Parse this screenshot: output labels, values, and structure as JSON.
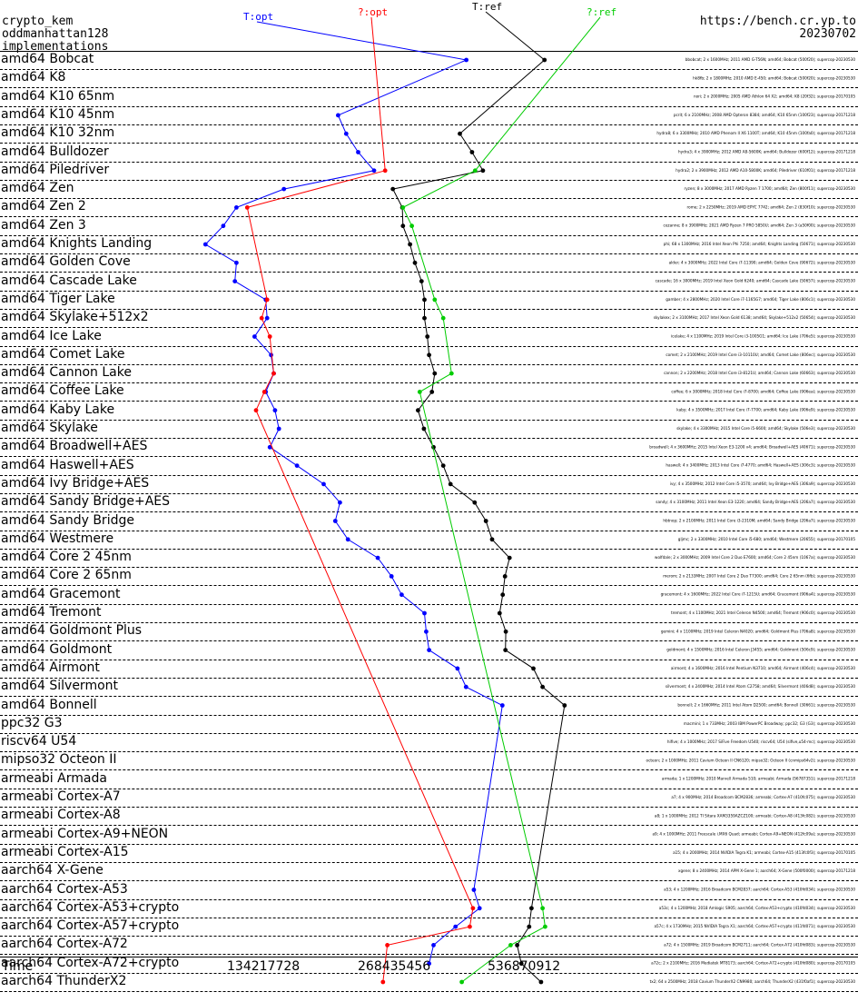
{
  "header": {
    "line1": "crypto_kem",
    "line2": "oddmanhattan128",
    "line3": "implementations",
    "url": "https://bench.cr.yp.to",
    "date": "20230702"
  },
  "series_labels": {
    "t_opt": "T:opt",
    "q_opt": "?:opt",
    "t_ref": "T:ref",
    "q_ref": "?:ref"
  },
  "colors": {
    "t_opt": "#0000ff",
    "q_opt": "#ff0000",
    "t_ref": "#000000",
    "q_ref": "#00cc00"
  },
  "rows": [
    "amd64 Bobcat",
    "amd64 K8",
    "amd64 K10 65nm",
    "amd64 K10 45nm",
    "amd64 K10 32nm",
    "amd64 Bulldozer",
    "amd64 Piledriver",
    "amd64 Zen",
    "amd64 Zen 2",
    "amd64 Zen 3",
    "amd64 Knights Landing",
    "amd64 Golden Cove",
    "amd64 Cascade Lake",
    "amd64 Tiger Lake",
    "amd64 Skylake+512x2",
    "amd64 Ice Lake",
    "amd64 Comet Lake",
    "amd64 Cannon Lake",
    "amd64 Coffee Lake",
    "amd64 Kaby Lake",
    "amd64 Skylake",
    "amd64 Broadwell+AES",
    "amd64 Haswell+AES",
    "amd64 Ivy Bridge+AES",
    "amd64 Sandy Bridge+AES",
    "amd64 Sandy Bridge",
    "amd64 Westmere",
    "amd64 Core 2 45nm",
    "amd64 Core 2 65nm",
    "amd64 Gracemont",
    "amd64 Tremont",
    "amd64 Goldmont Plus",
    "amd64 Goldmont",
    "amd64 Airmont",
    "amd64 Silvermont",
    "amd64 Bonnell",
    "ppc32 G3",
    "riscv64 U54",
    "mipso32 Octeon II",
    "armeabi Armada",
    "armeabi Cortex-A7",
    "armeabi Cortex-A8",
    "armeabi Cortex-A9+NEON",
    "armeabi Cortex-A15",
    "aarch64 X-Gene",
    "aarch64 Cortex-A53",
    "aarch64 Cortex-A53+crypto",
    "aarch64 Cortex-A57+crypto",
    "aarch64 Cortex-A72",
    "aarch64 Cortex-A72+crypto",
    "aarch64 ThunderX2"
  ],
  "x_axis": {
    "label": "Time",
    "ticks": [
      "134217728",
      "268435456",
      "536870912"
    ]
  },
  "machine_notes": [
    {
      "row": 0,
      "text": "bbobcat; 2 x 1600MHz; 2011 AMD G-T56N; amd64; Bobcat (500f20); supercop-20230530"
    },
    {
      "row": 1,
      "text": "hk8fb; 2 x 1800MHz; 2010 AMD E-450; amd64; Bobcat (500f20); supercop-20230530"
    },
    {
      "row": 2,
      "text": "nori; 2 x 2000MHz; 2005 AMD Athlon 64 X2; amd64; K8 (20f32); supercop-20170105"
    },
    {
      "row": 3,
      "text": "pcrit; 6 x 2100MHz; 2008 AMD Opteron 8384; amd64; K10 65nm (100f23); supercop-20171218"
    },
    {
      "row": 4,
      "text": "hydra8; 6 x 3300MHz; 2010 AMD Phenom II X6 1100T; amd64; K10 45nm (100fa0); supercop-20171218"
    },
    {
      "row": 5,
      "text": "hydra3; 4 x 3900MHz; 2012 AMD A8-5600K; amd64; Bulldozer (600f12); supercop-20171218"
    },
    {
      "row": 6,
      "text": "hydra2; 2 x 3900MHz; 2012 AMD A10-5800K; amd64; Piledriver (610f01); supercop-20171218"
    },
    {
      "row": 7,
      "text": "ryzen; 8 x 3000MHz; 2017 AMD Ryzen 7 1700; amd64; Zen (800f11); supercop-20230530"
    },
    {
      "row": 8,
      "text": "rome; 2 x 2250MHz; 2019 AMD EPYC 7742; amd64; Zen 2 (830f10); supercop-20230530"
    },
    {
      "row": 9,
      "text": "cezanne; 8 x 3900MHz; 2021 AMD Ryzen 7 PRO 5850U; amd64; Zen 3 (a50f00); supercop-20230530"
    },
    {
      "row": 10,
      "text": "phi; 68 x 1300MHz; 2016 Intel Xeon Phi 7250; amd64; Knights Landing (50671); supercop-20230530"
    },
    {
      "row": 11,
      "text": "alder; 4 x 3000MHz; 2022 Intel Core i7-11390; amd64; Golden Cove (90672); supercop-20230530"
    },
    {
      "row": 12,
      "text": "cascade; 16 x 3000MHz; 2019 Intel Xeon Gold 6240; amd64; Cascade Lake (50657); supercop-20230530"
    },
    {
      "row": 13,
      "text": "gamber; 4 x 2800MHz; 2020 Intel Core i7-1165G7; amd64; Tiger Lake (806c1); supercop-20230530"
    },
    {
      "row": 14,
      "text": "skylakex; 2 x 3100MHz; 2017 Intel Xeon Gold 6138; amd64; Skylake+512x2 (50654); supercop-20230530"
    },
    {
      "row": 15,
      "text": "icelake; 4 x 1100MHz; 2019 Intel Core i3-1005G1; amd64; Ice Lake (706e5); supercop-20230530"
    },
    {
      "row": 16,
      "text": "comet; 2 x 2100MHz; 2019 Intel Core i3-10110U; amd64; Comet Lake (806ec); supercop-20230530"
    },
    {
      "row": 17,
      "text": "cannon; 2 x 2200MHz; 2018 Intel Core i3-8121U; amd64; Cannon Lake (60663); supercop-20230530"
    },
    {
      "row": 18,
      "text": "coffee; 6 x 3000MHz; 2018 Intel Core i7-8700; amd64; Coffee Lake (906ea); supercop-20230530"
    },
    {
      "row": 19,
      "text": "kaby; 4 x 3500MHz; 2017 Intel Core i7-7700; amd64; Kaby Lake (906e9); supercop-20230530"
    },
    {
      "row": 20,
      "text": "skylake; 4 x 3300MHz; 2015 Intel Core i5-6600; amd64; Skylake (506e3); supercop-20230530"
    },
    {
      "row": 21,
      "text": "broadwell; 4 x 3600MHz; 2015 Intel Xeon E3-1200 v4; amd64; Broadwell+AES (40671); supercop-20230530"
    },
    {
      "row": 22,
      "text": "haswell; 4 x 3400MHz; 2013 Intel Core i7-4770; amd64; Haswell+AES (306c3); supercop-20230530"
    },
    {
      "row": 23,
      "text": "ivy; 4 x 3500MHz; 2012 Intel Core i5-3570; amd64; Ivy Bridge+AES (306a9); supercop-20230530"
    },
    {
      "row": 24,
      "text": "sandy; 4 x 3100MHz; 2011 Intel Xeon E3-1220; amd64; Sandy Bridge+AES (206a7); supercop-20230530"
    },
    {
      "row": 25,
      "text": "hbtnop; 2 x 2100MHz; 2011 Intel Core i3-2310M; amd64; Sandy Bridge (206a7); supercop-20230530"
    },
    {
      "row": 26,
      "text": "gljmc; 2 x 3300MHz; 2010 Intel Core i5-680; amd64; Westmere (20655); supercop-20170105"
    },
    {
      "row": 27,
      "text": "wolfdale; 2 x 3000MHz; 2009 Intel Core 2 Duo E7600; amd64; Core 2 45nm (1067a); supercop-20230530"
    },
    {
      "row": 28,
      "text": "merom; 2 x 2133MHz; 2007 Intel Core 2 Duo T7300; amd64; Core 2 65nm (6fb); supercop-20230530"
    },
    {
      "row": 29,
      "text": "gracemont; 4 x 1600MHz; 2022 Intel Core i7-1215U; amd64; Gracemont (906a4); supercop-20230530"
    },
    {
      "row": 30,
      "text": "tremont; 4 x 1100MHz; 2021 Intel Celeron N4500; amd64; Tremont (906c0); supercop-20230530"
    },
    {
      "row": 31,
      "text": "gemini; 4 x 1100MHz; 2019 Intel Celeron N4020; amd64; Goldmont Plus (706a8); supercop-20230530"
    },
    {
      "row": 32,
      "text": "goldmont; 4 x 1500MHz; 2016 Intel Celeron J3455; amd64; Goldmont (506c9); supercop-20230530"
    },
    {
      "row": 33,
      "text": "airmont; 4 x 1600MHz; 2016 Intel Pentium N3710; amd64; Airmont (406c4); supercop-20230530"
    },
    {
      "row": 34,
      "text": "silvermont; 4 x 2400MHz; 2014 Intel Atom C2758; amd64; Silvermont (406d8); supercop-20230530"
    },
    {
      "row": 35,
      "text": "bonnell; 2 x 1660MHz; 2011 Intel Atom D2500; amd64; Bonnell (30661); supercop-20230530"
    },
    {
      "row": 36,
      "text": "macmini; 1 x 733MHz; 2003 IBM PowerPC Broadway; ppc32; G3 (G3); supercop-20230530"
    },
    {
      "row": 37,
      "text": "hifive; 4 x 1000MHz; 2017 SiFive Freedom U540; riscv64; U54 (sifive,u54-mc); supercop-20230530"
    },
    {
      "row": 38,
      "text": "octeon; 2 x 1000MHz; 2011 Cavium Octeon II CN6120; mipso32; Octeon II (cnmips64v2); supercop-20230530"
    },
    {
      "row": 39,
      "text": "armada; 1 x 1200MHz; 2010 Marvell Armada 510; armeabi; Armada (56787351); supercop-20171218"
    },
    {
      "row": 40,
      "text": "a7; 4 x 900MHz; 2014 Broadcom BCM2836; armeabi; Cortex-A7 (410fc075); supercop-20230530"
    },
    {
      "row": 41,
      "text": "a8; 1 x 1000MHz; 2012 TI Sitara XAM3359AZCZ100; armeabi; Cortex-A8 (413fc082); supercop-20230530"
    },
    {
      "row": 42,
      "text": "a9; 4 x 1000MHz; 2011 Freescale i.MX6 Quad; armeabi; Cortex-A9+NEON (412fc09a); supercop-20230530"
    },
    {
      "row": 43,
      "text": "a15; 4 x 2000MHz; 2014 NVIDIA Tegra K1; armeabi; Cortex-A15 (413fc0f3); supercop-20170105"
    },
    {
      "row": 44,
      "text": "xgene; 8 x 2400MHz; 2014 APM X-Gene 1; aarch64; X-Gene (500f0000); supercop-20171218"
    },
    {
      "row": 45,
      "text": "a53; 4 x 1200MHz; 2016 Broadcom BCM2837; aarch64; Cortex-A53 (410fd034); supercop-20230530"
    },
    {
      "row": 46,
      "text": "a53c; 4 x 1200MHz; 2018 Amlogic S905; aarch64; Cortex-A53+crypto (410fd034); supercop-20230530"
    },
    {
      "row": 47,
      "text": "a57c; 4 x 1730MHz; 2015 NVIDIA Tegra X1; aarch64; Cortex-A57+crypto (411fd071); supercop-20230530"
    },
    {
      "row": 48,
      "text": "a72; 4 x 1500MHz; 2019 Broadcom BCM2711; aarch64; Cortex-A72 (410fd083); supercop-20230530"
    },
    {
      "row": 49,
      "text": "a72c; 2 x 2100MHz; 2016 Mediatek MT8173; aarch64; Cortex-A72+crypto (410fd080); supercop-20170105"
    },
    {
      "row": 50,
      "text": "tx2; 64 x 2500MHz; 2018 Cavium ThunderX2 CN9980; aarch64; ThunderX2 (431f0af1); supercop-20230530"
    }
  ],
  "chart_data": {
    "type": "line",
    "xlabel": "Time",
    "x_scale": "log2",
    "x_ticks": [
      134217728,
      268435456,
      536870912
    ],
    "xlim": [
      21474836,
      1717986918
    ],
    "categories_ref": "rows",
    "series": [
      {
        "name": "T:opt",
        "color": "#0000ff",
        "values": [
          [
            0,
            402653184
          ],
          [
            3,
            203000000
          ],
          [
            4,
            212000000
          ],
          [
            5,
            226000000
          ],
          [
            6,
            246000000
          ],
          [
            7,
            152000000
          ],
          [
            8,
            118000000
          ],
          [
            9,
            110000000
          ],
          [
            10,
            100000000
          ],
          [
            11,
            118000000
          ],
          [
            12,
            117000000
          ],
          [
            13,
            138000000
          ],
          [
            14,
            139000000
          ],
          [
            15,
            130000000
          ],
          [
            16,
            142000000
          ],
          [
            17,
            144000000
          ],
          [
            18,
            138000000
          ],
          [
            19,
            145000000
          ],
          [
            20,
            148000000
          ],
          [
            21,
            141000000
          ],
          [
            22,
            163000000
          ],
          [
            23,
            188000000
          ],
          [
            24,
            205000000
          ],
          [
            25,
            200000000
          ],
          [
            26,
            214000000
          ],
          [
            27,
            251000000
          ],
          [
            28,
            270000000
          ],
          [
            29,
            285000000
          ],
          [
            30,
            322000000
          ],
          [
            31,
            325000000
          ],
          [
            32,
            330000000
          ],
          [
            33,
            384000000
          ],
          [
            34,
            402000000
          ],
          [
            35,
            488000000
          ],
          [
            45,
            419000000
          ],
          [
            46,
            432000000
          ],
          [
            47,
            380000000
          ],
          [
            48,
            338000000
          ],
          [
            49,
            330000000
          ]
        ]
      },
      {
        "name": "?:opt",
        "color": "#ff0000",
        "values": [
          [
            6,
            261000000
          ],
          [
            8,
            125000000
          ],
          [
            13,
            139000000
          ],
          [
            14,
            135000000
          ],
          [
            15,
            141000000
          ],
          [
            17,
            144000000
          ],
          [
            18,
            137000000
          ],
          [
            19,
            131000000
          ],
          [
            46,
            417000000
          ],
          [
            47,
            410000000
          ],
          [
            48,
            264000000
          ],
          [
            50,
            258000000
          ]
        ]
      },
      {
        "name": "T:ref",
        "color": "#000000",
        "values": [
          [
            0,
            611000000
          ],
          [
            4,
            389000000
          ],
          [
            5,
            415000000
          ],
          [
            6,
            440000000
          ],
          [
            7,
            272000000
          ],
          [
            8,
            286000000
          ],
          [
            9,
            287000000
          ],
          [
            10,
            298000000
          ],
          [
            11,
            306000000
          ],
          [
            12,
            317000000
          ],
          [
            13,
            322000000
          ],
          [
            14,
            322000000
          ],
          [
            15,
            327000000
          ],
          [
            16,
            330000000
          ],
          [
            17,
            340000000
          ],
          [
            18,
            335000000
          ],
          [
            19,
            311000000
          ],
          [
            20,
            321000000
          ],
          [
            21,
            338000000
          ],
          [
            22,
            356000000
          ],
          [
            23,
            370000000
          ],
          [
            24,
            421000000
          ],
          [
            25,
            447000000
          ],
          [
            26,
            462000000
          ],
          [
            27,
            507000000
          ],
          [
            28,
            495000000
          ],
          [
            29,
            489000000
          ],
          [
            30,
            481000000
          ],
          [
            31,
            497000000
          ],
          [
            32,
            496000000
          ],
          [
            33,
            576000000
          ],
          [
            34,
            605000000
          ],
          [
            35,
            680000000
          ],
          [
            46,
            570000000
          ],
          [
            47,
            563000000
          ],
          [
            48,
            528000000
          ],
          [
            49,
            540000000
          ],
          [
            50,
            600000000
          ]
        ]
      },
      {
        "name": "?:ref",
        "color": "#00cc00",
        "values": [
          [
            6,
            422000000
          ],
          [
            8,
            287000000
          ],
          [
            9,
            301000000
          ],
          [
            13,
            340000000
          ],
          [
            14,
            356000000
          ],
          [
            17,
            372000000
          ],
          [
            18,
            314000000
          ],
          [
            46,
            605000000
          ],
          [
            47,
            613000000
          ],
          [
            48,
            510000000
          ],
          [
            50,
            393000000
          ]
        ]
      }
    ]
  }
}
